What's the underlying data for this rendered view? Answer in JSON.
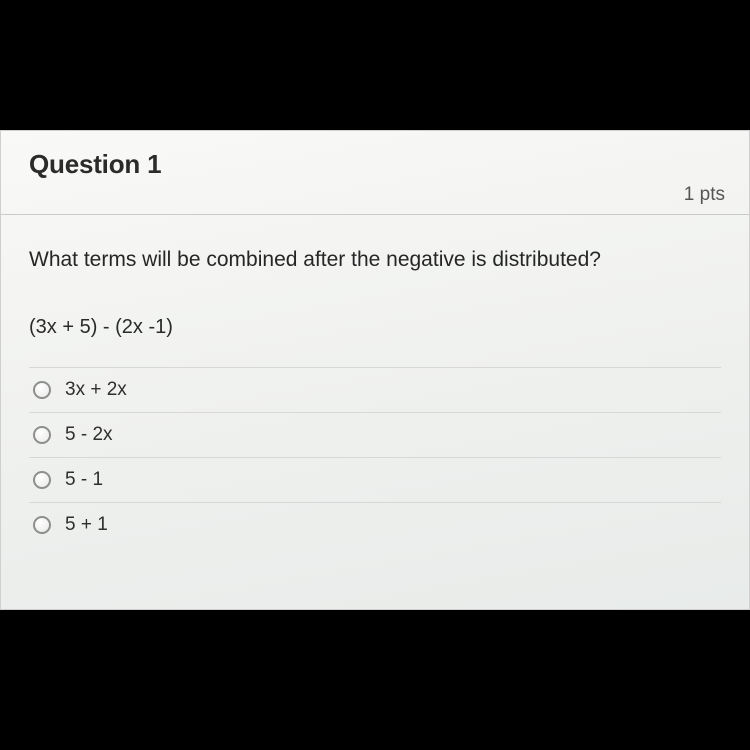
{
  "question": {
    "title": "Question 1",
    "points": "1 pts",
    "prompt": "What terms will be combined after the negative is distributed?",
    "expression": "(3x + 5) - (2x -1)",
    "options": [
      {
        "label": "3x + 2x"
      },
      {
        "label": "5 - 2x"
      },
      {
        "label": "5 - 1"
      },
      {
        "label": "5 + 1"
      }
    ]
  },
  "style": {
    "background": "#f5f6f4",
    "border_color": "#cfcfcf",
    "divider_color": "#d6d8d6",
    "title_color": "#2b2b2b",
    "text_color": "#262626",
    "pts_color": "#555555",
    "radio_border": "#8d8f8d",
    "title_fontsize": 26,
    "prompt_fontsize": 21,
    "option_fontsize": 19
  }
}
